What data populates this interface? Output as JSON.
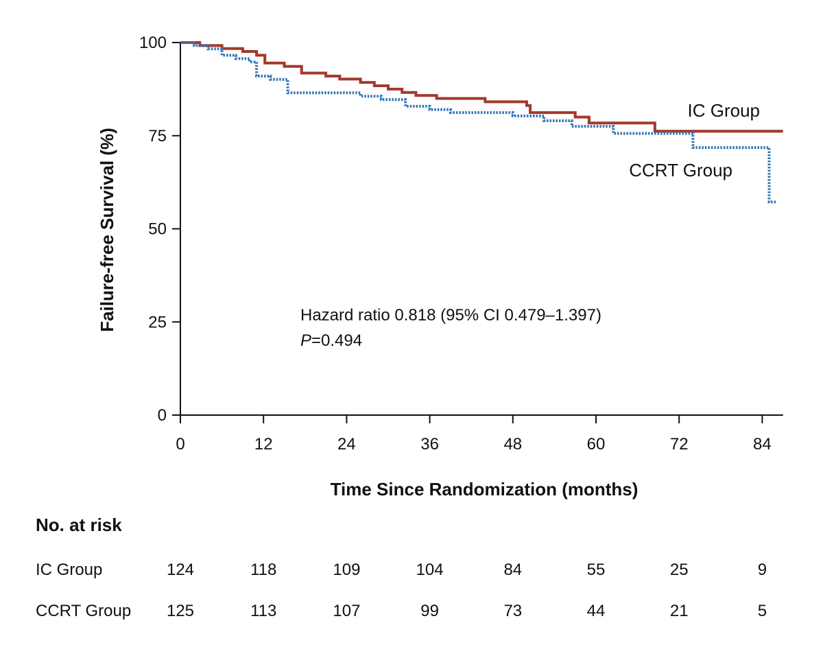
{
  "chart_data": {
    "type": "line",
    "subtype": "kaplan-meier",
    "title": "",
    "xlabel": "Time Since Randomization (months)",
    "ylabel": "Failure-free Survival (%)",
    "xlim": [
      0,
      87
    ],
    "ylim": [
      0,
      100
    ],
    "xticks": [
      0,
      12,
      24,
      36,
      48,
      60,
      72,
      84
    ],
    "yticks": [
      0,
      25,
      50,
      75,
      100
    ],
    "grid": false,
    "series": [
      {
        "name": "IC Group",
        "color": "#a3392c",
        "style": "solid",
        "x": [
          0,
          2.8,
          6,
          9,
          11,
          12.2,
          15,
          17.5,
          21,
          23,
          26,
          28,
          30,
          32,
          34,
          37,
          44,
          50,
          50.5,
          57,
          59,
          68.5,
          87
        ],
        "y": [
          100,
          99.2,
          98.4,
          97.6,
          96.6,
          94.5,
          93.6,
          91.8,
          91.0,
          90.2,
          89.3,
          88.4,
          87.5,
          86.6,
          85.8,
          85.0,
          84.1,
          83.1,
          81.2,
          80.0,
          78.4,
          76.2,
          76.2
        ]
      },
      {
        "name": "CCRT Group",
        "color": "#2f74b5",
        "style": "dotted",
        "x": [
          0,
          2,
          4,
          6,
          8,
          10,
          11,
          13,
          15.5,
          20,
          26,
          29,
          32.5,
          36,
          39,
          48,
          52.5,
          56.5,
          62.5,
          74,
          85,
          86
        ],
        "y": [
          100,
          99.2,
          98.3,
          96.6,
          95.7,
          94.8,
          91.0,
          90.1,
          86.5,
          86.5,
          85.6,
          84.7,
          82.9,
          82.0,
          81.2,
          80.3,
          79.0,
          77.5,
          75.6,
          71.8,
          57.2,
          57.2
        ]
      }
    ],
    "series_labels": [
      "IC Group",
      "CCRT Group"
    ],
    "annotations": {
      "hazard": "Hazard ratio 0.818 (95% CI 0.479–1.397)",
      "p_italic": "P",
      "p_value": "=0.494"
    },
    "risk_table": {
      "title": "No. at risk",
      "rows": [
        {
          "label": "IC Group",
          "values": [
            "124",
            "118",
            "109",
            "104",
            "84",
            "55",
            "25",
            "9"
          ]
        },
        {
          "label": "CCRT Group",
          "values": [
            "125",
            "113",
            "107",
            "99",
            "73",
            "44",
            "21",
            "5"
          ]
        }
      ]
    }
  }
}
